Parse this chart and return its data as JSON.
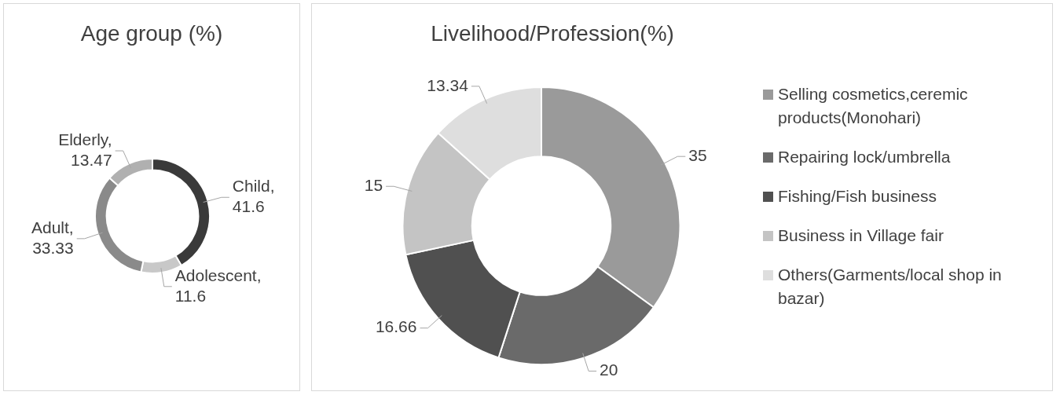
{
  "chart_data": [
    {
      "type": "donut",
      "title": "Age group (%)",
      "categories": [
        null,
        null,
        null,
        null
      ],
      "values": [
        41.6,
        11.6,
        33.33,
        13.47
      ],
      "colors": [
        "#3a3a3a",
        "#c8c8c8",
        "#8a8a8a",
        "#b0b0b0"
      ],
      "value_labels": [
        "Child, 41.6",
        "Adolescent, 11.6",
        "Adult, 33.33",
        "Elderly, 13.47"
      ],
      "legend": false
    },
    {
      "type": "donut",
      "title": "Livelihood/Profession(%)",
      "categories": [
        "Selling cosmetics,ceremic products(Monohari)",
        "Repairing lock/umbrella",
        "Fishing/Fish business",
        "Business in Village fair",
        "Others(Garments/local shop in bazar)"
      ],
      "values": [
        35,
        20,
        16.66,
        15,
        13.34
      ],
      "colors": [
        "#9a9a9a",
        "#6a6a6a",
        "#505050",
        "#c4c4c4",
        "#dedede"
      ],
      "data_labels": true,
      "legend": "right"
    }
  ]
}
